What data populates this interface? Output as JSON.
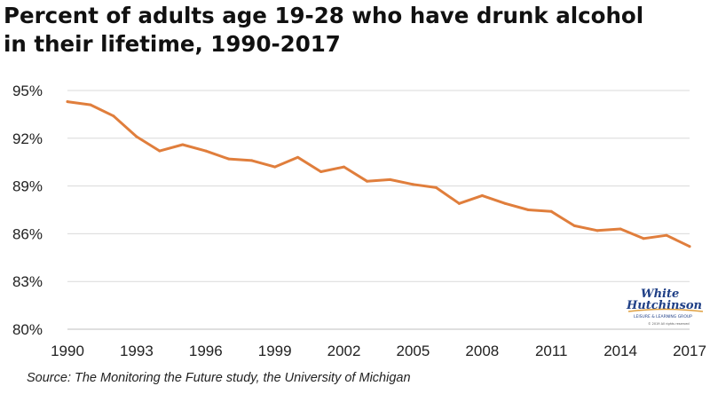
{
  "title_lines": [
    "Percent of adults age 19-28 who have drunk alcohol",
    "in their lifetime, 1990-2017"
  ],
  "source": "Source: The Monitoring the Future study, the University of Michigan",
  "logo": {
    "line1": "White",
    "line2": "Hutchinson",
    "tagline": "LEISURE & LEARNING GROUP",
    "fine": "© 2019 All rights reserved",
    "colors": {
      "text": "#1f3f86",
      "accent": "#e0a040"
    }
  },
  "chart_data": {
    "type": "line",
    "title": "Percent of adults age 19-28 who have drunk alcohol in their lifetime, 1990-2017",
    "xlabel": "",
    "ylabel": "",
    "x": [
      1990,
      1991,
      1992,
      1993,
      1994,
      1995,
      1996,
      1997,
      1998,
      1999,
      2000,
      2001,
      2002,
      2003,
      2004,
      2005,
      2006,
      2007,
      2008,
      2009,
      2010,
      2011,
      2012,
      2013,
      2014,
      2015,
      2016,
      2017
    ],
    "series": [
      {
        "values": [
          94.3,
          94.1,
          93.4,
          92.1,
          91.2,
          91.6,
          91.2,
          90.7,
          90.6,
          90.2,
          90.8,
          89.9,
          90.2,
          89.3,
          89.4,
          89.1,
          88.9,
          87.9,
          88.4,
          87.9,
          87.5,
          87.4,
          86.5,
          86.2,
          86.3,
          85.7,
          85.9,
          85.2
        ],
        "color": "#e07e3c"
      }
    ],
    "xlim": [
      1990,
      2017
    ],
    "ylim": [
      80,
      95
    ],
    "x_ticks": [
      1990,
      1993,
      1996,
      1999,
      2002,
      2005,
      2008,
      2011,
      2014,
      2017
    ],
    "y_ticks": [
      80,
      83,
      86,
      89,
      92,
      95
    ],
    "y_tick_labels": [
      "80%",
      "83%",
      "86%",
      "89%",
      "92%",
      "95%"
    ],
    "grid": {
      "horizontal": true,
      "vertical": false,
      "color": "#d9d9d9"
    },
    "legend": "none"
  }
}
